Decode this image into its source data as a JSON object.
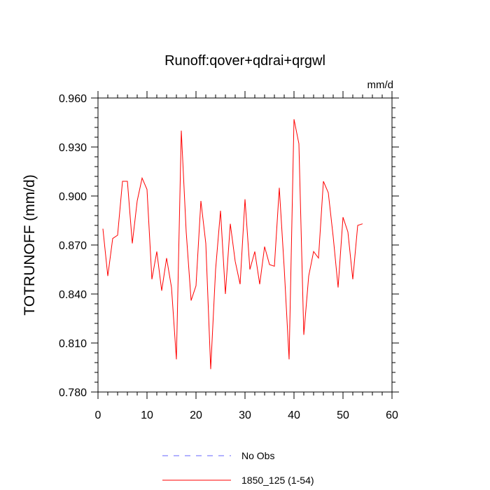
{
  "chart_data": {
    "type": "line",
    "title": "Runoff:qover+qdrai+qrgwl",
    "units_label": "mm/d",
    "ylabel": "TOTRUNOFF  (mm/d)",
    "xlabel": "",
    "xlim": [
      0,
      60
    ],
    "ylim": [
      0.78,
      0.96
    ],
    "xticks": [
      0,
      10,
      20,
      30,
      40,
      50,
      60
    ],
    "xtick_labels": [
      "0",
      "10",
      "20",
      "30",
      "40",
      "50",
      "60"
    ],
    "yticks": [
      0.78,
      0.81,
      0.84,
      0.87,
      0.9,
      0.93,
      0.96
    ],
    "ytick_labels": [
      "0.780",
      "0.810",
      "0.840",
      "0.870",
      "0.900",
      "0.930",
      "0.960"
    ],
    "x_minor_step": 2,
    "y_minor_step": 0.006,
    "grid": false,
    "legend_position": "bottom",
    "series": [
      {
        "name": "No Obs",
        "color": "#6666ff",
        "style": "dashed",
        "x": [],
        "values": []
      },
      {
        "name": "1850_125 (1-54)",
        "color": "#ff0000",
        "style": "solid",
        "x": [
          1,
          2,
          3,
          4,
          5,
          6,
          7,
          8,
          9,
          10,
          11,
          12,
          13,
          14,
          15,
          16,
          17,
          18,
          19,
          20,
          21,
          22,
          23,
          24,
          25,
          26,
          27,
          28,
          29,
          30,
          31,
          32,
          33,
          34,
          35,
          36,
          37,
          38,
          39,
          40,
          41,
          42,
          43,
          44,
          45,
          46,
          47,
          48,
          49,
          50,
          51,
          52,
          53,
          54
        ],
        "values": [
          0.88,
          0.851,
          0.874,
          0.876,
          0.909,
          0.909,
          0.871,
          0.897,
          0.911,
          0.904,
          0.849,
          0.866,
          0.842,
          0.862,
          0.844,
          0.8,
          0.94,
          0.878,
          0.836,
          0.845,
          0.897,
          0.871,
          0.794,
          0.855,
          0.891,
          0.84,
          0.883,
          0.86,
          0.846,
          0.898,
          0.855,
          0.866,
          0.846,
          0.869,
          0.858,
          0.857,
          0.905,
          0.856,
          0.8,
          0.947,
          0.932,
          0.815,
          0.851,
          0.866,
          0.862,
          0.909,
          0.902,
          0.875,
          0.844,
          0.887,
          0.878,
          0.849,
          0.882,
          0.883
        ]
      }
    ]
  }
}
